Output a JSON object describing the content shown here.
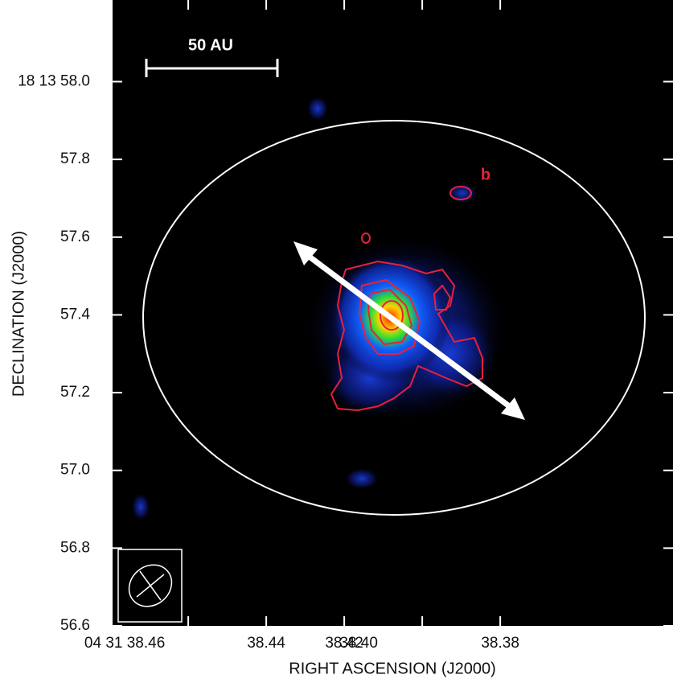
{
  "chart_data": {
    "type": "image",
    "xlabel": "RIGHT ASCENSION (J2000)",
    "ylabel": "DECLINATION (J2000)",
    "scale_label": "50 AU",
    "annotation": "b",
    "xlim": [
      38.4794,
      38.3357
    ],
    "ylim": [
      56.6,
      58.21
    ],
    "xticks": [
      {
        "value": 38.46,
        "label": "04 31 38.46"
      },
      38.44,
      38.42,
      {
        "value": 38.4,
        "label": "38.40"
      },
      38.38
    ],
    "yticks": [
      {
        "value": 58,
        "label": "18 13 58.0"
      },
      57.8,
      57.6,
      57.4,
      57.2,
      {
        "value": 57,
        "label": "57.0"
      },
      56.8,
      56.6
    ]
  }
}
